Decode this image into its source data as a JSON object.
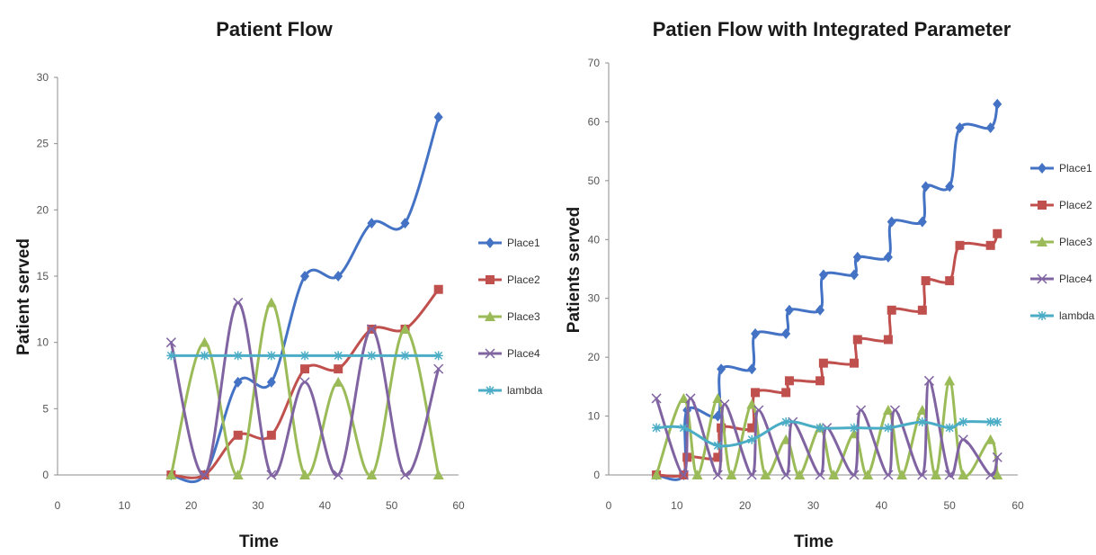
{
  "colors": {
    "Place1": "#4472C4",
    "Place2": "#C0504D",
    "Place3": "#9BBB59",
    "Place4": "#8064A2",
    "lambda": "#4BACC6"
  },
  "markers": {
    "Place1": "diamond",
    "Place2": "square",
    "Place3": "triangle",
    "Place4": "x",
    "lambda": "asterisk"
  },
  "chart_data": [
    {
      "type": "line",
      "title": "Patient Flow",
      "xlabel": "Time",
      "ylabel": "Patient served",
      "xlim": [
        0,
        60
      ],
      "ylim": [
        0,
        30
      ],
      "xticks": [
        0,
        10,
        20,
        30,
        40,
        50,
        60
      ],
      "yticks": [
        0,
        5,
        10,
        15,
        20,
        25,
        30
      ],
      "grid": false,
      "legend": "right",
      "smooth": true,
      "series": [
        {
          "name": "Place1",
          "x": [
            17,
            22,
            27,
            32,
            37,
            42,
            47,
            52,
            57
          ],
          "y": [
            0,
            0,
            7,
            7,
            15,
            15,
            19,
            19,
            27
          ]
        },
        {
          "name": "Place2",
          "x": [
            17,
            22,
            27,
            32,
            37,
            42,
            47,
            52,
            57
          ],
          "y": [
            0,
            0,
            3,
            3,
            8,
            8,
            11,
            11,
            14
          ]
        },
        {
          "name": "Place3",
          "x": [
            17,
            22,
            27,
            32,
            37,
            42,
            47,
            52,
            57
          ],
          "y": [
            0,
            10,
            0,
            13,
            0,
            7,
            0,
            11,
            0
          ]
        },
        {
          "name": "Place4",
          "x": [
            17,
            22,
            27,
            32,
            37,
            42,
            47,
            52,
            57
          ],
          "y": [
            10,
            0,
            13,
            0,
            7,
            0,
            11,
            0,
            8
          ]
        },
        {
          "name": "lambda",
          "x": [
            17,
            22,
            27,
            32,
            37,
            42,
            47,
            52,
            57
          ],
          "y": [
            9,
            9,
            9,
            9,
            9,
            9,
            9,
            9,
            9
          ]
        }
      ]
    },
    {
      "type": "line",
      "title": "Patien Flow with Integrated Parameter",
      "xlabel": "Time",
      "ylabel": "Patients served",
      "xlim": [
        0,
        60
      ],
      "ylim": [
        0,
        70
      ],
      "xticks": [
        0,
        10,
        20,
        30,
        40,
        50,
        60
      ],
      "yticks": [
        0,
        10,
        20,
        30,
        40,
        50,
        60,
        70
      ],
      "grid": false,
      "legend": "right",
      "smooth": true,
      "series": [
        {
          "name": "Place1",
          "x": [
            7,
            11,
            11.5,
            16,
            16.5,
            21,
            21.5,
            26,
            26.5,
            31,
            31.5,
            36,
            36.5,
            41,
            41.5,
            46,
            46.5,
            50,
            51.5,
            56,
            57
          ],
          "y": [
            0,
            0,
            11,
            10,
            18,
            18,
            24,
            24,
            28,
            28,
            34,
            34,
            37,
            37,
            43,
            43,
            49,
            49,
            59,
            59,
            63
          ]
        },
        {
          "name": "Place2",
          "x": [
            7,
            11,
            11.5,
            16,
            16.5,
            21,
            21.5,
            26,
            26.5,
            31,
            31.5,
            36,
            36.5,
            41,
            41.5,
            46,
            46.5,
            50,
            51.5,
            56,
            57
          ],
          "y": [
            0,
            0,
            3,
            3,
            8,
            8,
            14,
            14,
            16,
            16,
            19,
            19,
            23,
            23,
            28,
            28,
            33,
            33,
            39,
            39,
            41
          ]
        },
        {
          "name": "Place3",
          "x": [
            7,
            11,
            13,
            16,
            18,
            21,
            23,
            26,
            28,
            31,
            33,
            36,
            38,
            41,
            43,
            46,
            48,
            50,
            52,
            56,
            57
          ],
          "y": [
            0,
            13,
            0,
            13,
            0,
            12,
            0,
            6,
            0,
            8,
            0,
            7,
            0,
            11,
            0,
            11,
            0,
            16,
            0,
            6,
            0
          ]
        },
        {
          "name": "Place4",
          "x": [
            7,
            11,
            12,
            16,
            17,
            21,
            22,
            26,
            27,
            31,
            32,
            36,
            37,
            41,
            42,
            46,
            47,
            50,
            52,
            56,
            57
          ],
          "y": [
            13,
            0,
            13,
            0,
            12,
            0,
            11,
            0,
            9,
            0,
            8,
            0,
            11,
            0,
            11,
            0,
            16,
            0,
            6,
            0,
            3
          ]
        },
        {
          "name": "lambda",
          "x": [
            7,
            11,
            16,
            21,
            26,
            31,
            36,
            41,
            46,
            50,
            52,
            56,
            57
          ],
          "y": [
            8,
            8,
            5,
            6,
            9,
            8,
            8,
            8,
            9,
            8,
            9,
            9,
            9
          ]
        }
      ]
    }
  ]
}
